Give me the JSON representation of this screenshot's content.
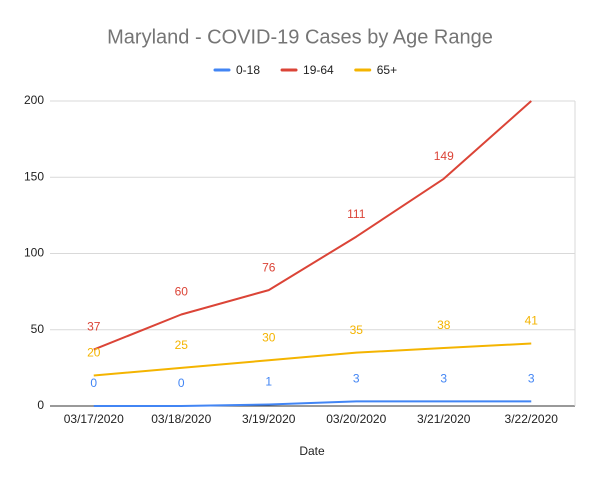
{
  "chart_data": {
    "type": "line",
    "title": "Maryland - COVID-19 Cases by Age Range",
    "x_label": "Date",
    "categories": [
      "03/17/2020",
      "03/18/2020",
      "3/19/2020",
      "03/20/2020",
      "3/21/2020",
      "3/22/2020"
    ],
    "series": [
      {
        "name": "0-18",
        "color": "#4285f4",
        "values": [
          0,
          0,
          1,
          3,
          3,
          3
        ]
      },
      {
        "name": "19-64",
        "color": "#db4437",
        "values": [
          37,
          60,
          76,
          111,
          149,
          200
        ]
      },
      {
        "name": "65+",
        "color": "#f4b400",
        "values": [
          20,
          25,
          30,
          35,
          38,
          41
        ]
      }
    ],
    "ylim": [
      0,
      200
    ],
    "yticks": [
      0,
      50,
      100,
      150,
      200
    ],
    "grid": true,
    "legend": "top",
    "data_labels": true
  }
}
